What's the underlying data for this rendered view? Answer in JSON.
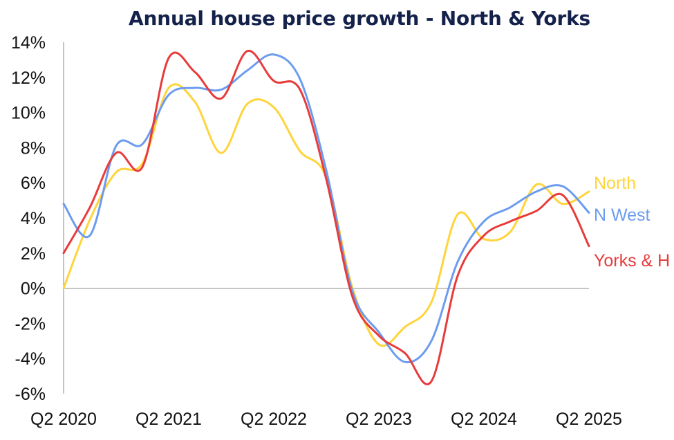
{
  "chart_data": {
    "type": "line",
    "title": "Annual house price growth - North & Yorks",
    "xlabel": "",
    "ylabel": "",
    "ylim": [
      -6,
      14
    ],
    "yticks": [
      14,
      12,
      10,
      8,
      6,
      4,
      2,
      0,
      -2,
      -4,
      -6
    ],
    "ytick_labels": [
      "14%",
      "12%",
      "10%",
      "8%",
      "6%",
      "4%",
      "2%",
      "0%",
      "-2%",
      "-4%",
      "-6%"
    ],
    "x_tick_labels": [
      "Q2 2020",
      "Q2 2021",
      "Q2 2022",
      "Q2 2023",
      "Q2 2024",
      "Q2 2025"
    ],
    "x": [
      "Q2 2020",
      "Q3 2020",
      "Q4 2020",
      "Q1 2021",
      "Q2 2021",
      "Q3 2021",
      "Q4 2021",
      "Q1 2022",
      "Q2 2022",
      "Q3 2022",
      "Q4 2022",
      "Q1 2023",
      "Q2 2023",
      "Q3 2023",
      "Q4 2023",
      "Q1 2024",
      "Q2 2024",
      "Q3 2024",
      "Q4 2024",
      "Q1 2025",
      "Q2 2025"
    ],
    "grid": false,
    "series": [
      {
        "name": "North",
        "color": "#FFD43B",
        "values": [
          0.0,
          3.9,
          6.6,
          7.1,
          11.4,
          10.6,
          7.7,
          10.5,
          10.3,
          7.8,
          6.3,
          0.0,
          -3.2,
          -2.2,
          -0.8,
          4.2,
          2.8,
          3.2,
          5.9,
          4.8,
          5.5
        ]
      },
      {
        "name": "N West",
        "color": "#6C9CEF",
        "values": [
          4.8,
          3.0,
          8.1,
          8.2,
          11.0,
          11.4,
          11.3,
          12.4,
          13.3,
          11.9,
          6.7,
          -0.2,
          -2.5,
          -4.2,
          -3.0,
          1.5,
          3.8,
          4.6,
          5.5,
          5.8,
          4.3
        ]
      },
      {
        "name": "Yorks & H",
        "color": "#E83B3B",
        "values": [
          2.0,
          4.6,
          7.7,
          6.9,
          13.1,
          12.3,
          10.8,
          13.5,
          11.8,
          11.3,
          6.2,
          -0.5,
          -2.7,
          -3.7,
          -5.3,
          0.7,
          3.0,
          3.8,
          4.4,
          5.3,
          2.4
        ]
      }
    ]
  }
}
